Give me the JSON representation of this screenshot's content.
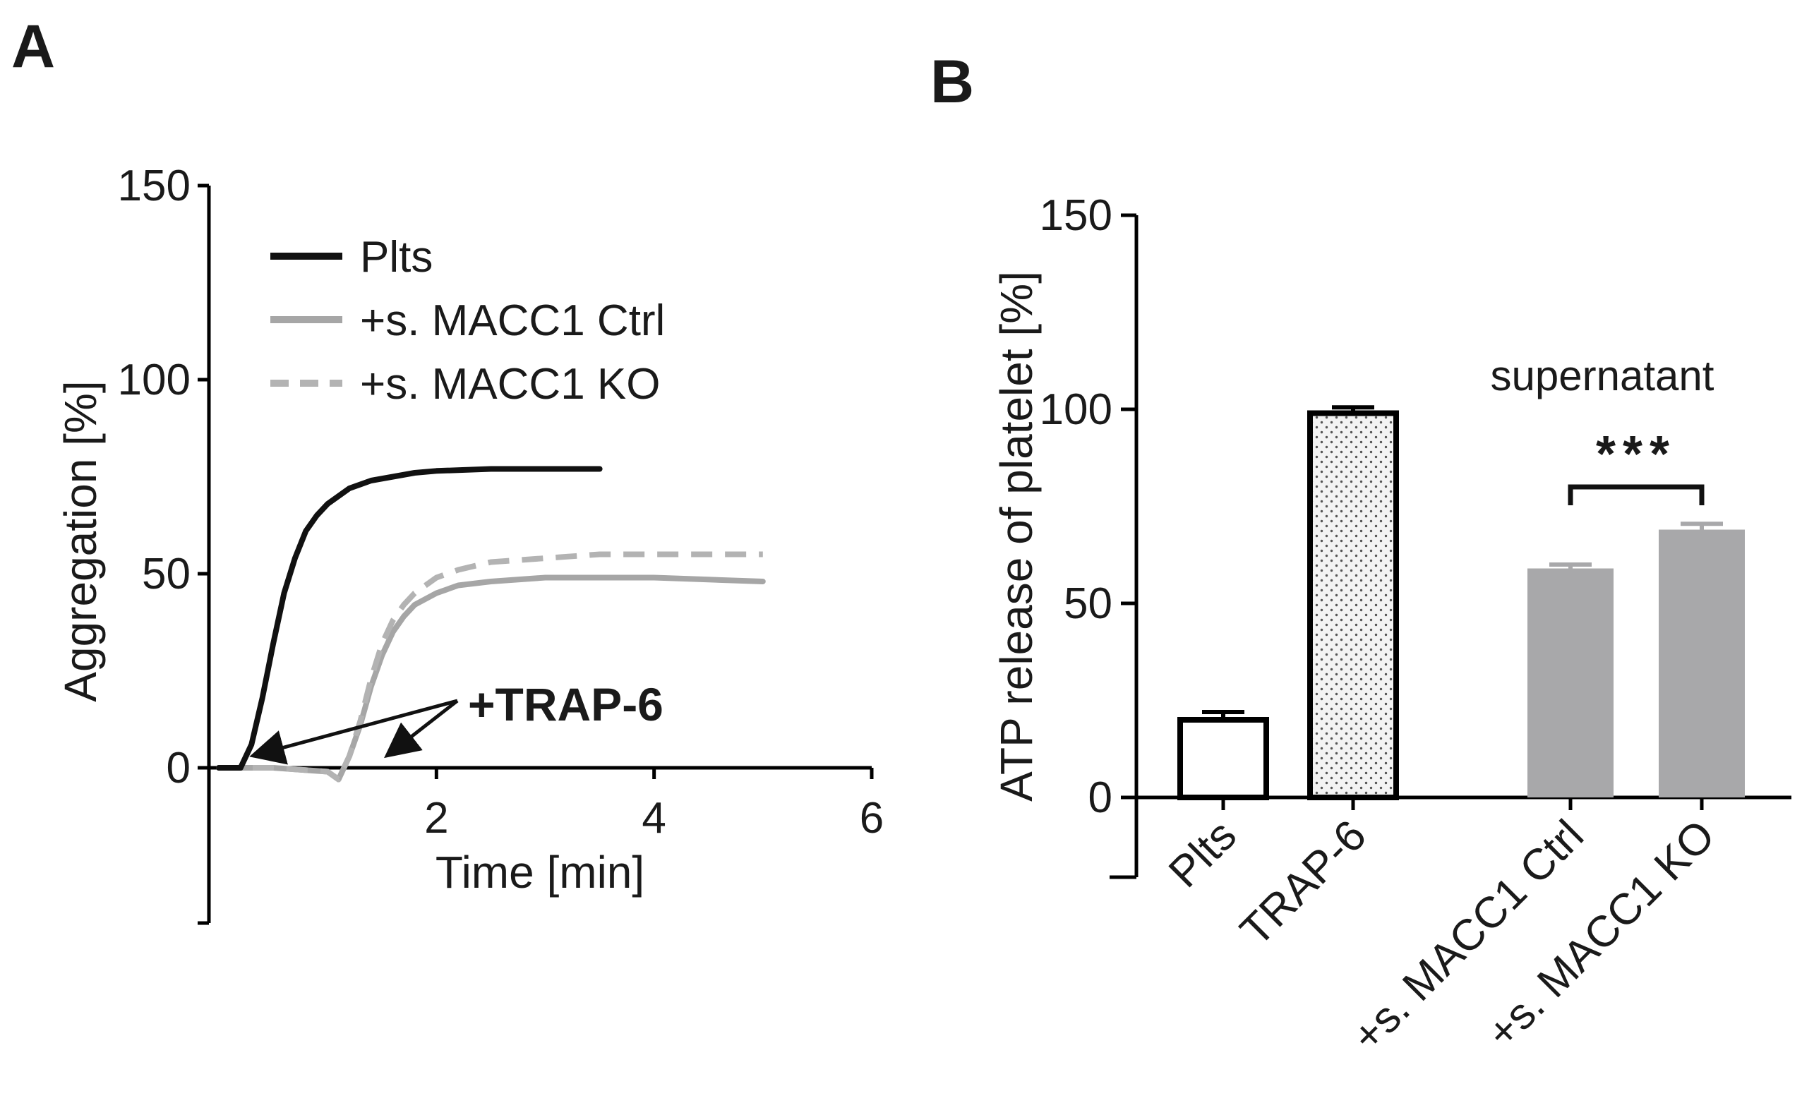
{
  "figure": {
    "panel_a_label": "A",
    "panel_b_label": "B"
  },
  "chart_data": [
    {
      "type": "line",
      "panel": "A",
      "xlabel": "Time [min]",
      "ylabel": "Aggregation [%]",
      "xlim": [
        0,
        6
      ],
      "ylim": [
        -20,
        150
      ],
      "xticks": [
        2,
        4,
        6
      ],
      "yticks": [
        0,
        50,
        100,
        150
      ],
      "grid": false,
      "legend_position": "top-left",
      "annotation": "+TRAP-6",
      "series": [
        {
          "name": "Plts",
          "color": "#111111",
          "style": "solid",
          "x": [
            0,
            0.2,
            0.3,
            0.4,
            0.5,
            0.6,
            0.7,
            0.8,
            0.9,
            1.0,
            1.2,
            1.4,
            1.6,
            1.8,
            2.0,
            2.5,
            3.0,
            3.5
          ],
          "y": [
            0,
            0,
            6,
            18,
            32,
            45,
            54,
            61,
            65,
            68,
            72,
            74,
            75,
            76,
            76.5,
            77,
            77,
            77
          ]
        },
        {
          "name": "+s. MACC1 Ctrl",
          "color": "#a6a6a6",
          "style": "solid",
          "x": [
            0,
            0.5,
            1.0,
            1.1,
            1.2,
            1.3,
            1.4,
            1.5,
            1.6,
            1.7,
            1.8,
            2.0,
            2.2,
            2.5,
            3.0,
            3.5,
            4.0,
            4.5,
            5.0
          ],
          "y": [
            0,
            0,
            -1,
            -3,
            3,
            11,
            21,
            29,
            35,
            39,
            42,
            45,
            47,
            48,
            49,
            49,
            49,
            48.5,
            48
          ]
        },
        {
          "name": "+s. MACC1 KO",
          "color": "#b3b3b3",
          "style": "dashed",
          "x": [
            0,
            0.5,
            1.0,
            1.1,
            1.2,
            1.3,
            1.4,
            1.5,
            1.6,
            1.7,
            1.8,
            2.0,
            2.2,
            2.5,
            3.0,
            3.5,
            4.0,
            4.5,
            5.0
          ],
          "y": [
            0,
            0,
            -1,
            -3,
            3,
            12,
            23,
            32,
            38,
            42,
            45,
            49,
            51,
            53,
            54,
            55,
            55,
            55,
            55
          ]
        }
      ]
    },
    {
      "type": "bar",
      "panel": "B",
      "ylabel": "ATP release of platelet [%]",
      "ylim": [
        0,
        150
      ],
      "yticks": [
        0,
        50,
        100,
        150
      ],
      "grid": false,
      "categories": [
        "Plts",
        "TRAP-6",
        "+s. MACC1 Ctrl",
        "+s. MACC1 KO"
      ],
      "values": [
        20,
        99,
        59,
        69
      ],
      "errors": [
        2,
        1.5,
        1,
        1.5
      ],
      "bar_styles": [
        "open",
        "dotted",
        "gray",
        "gray"
      ],
      "colors": [
        "#ffffff",
        "#e8e8e8",
        "#a8a8aa",
        "#a8a8aa"
      ],
      "group_label": "supernatant",
      "significance": "***"
    }
  ]
}
